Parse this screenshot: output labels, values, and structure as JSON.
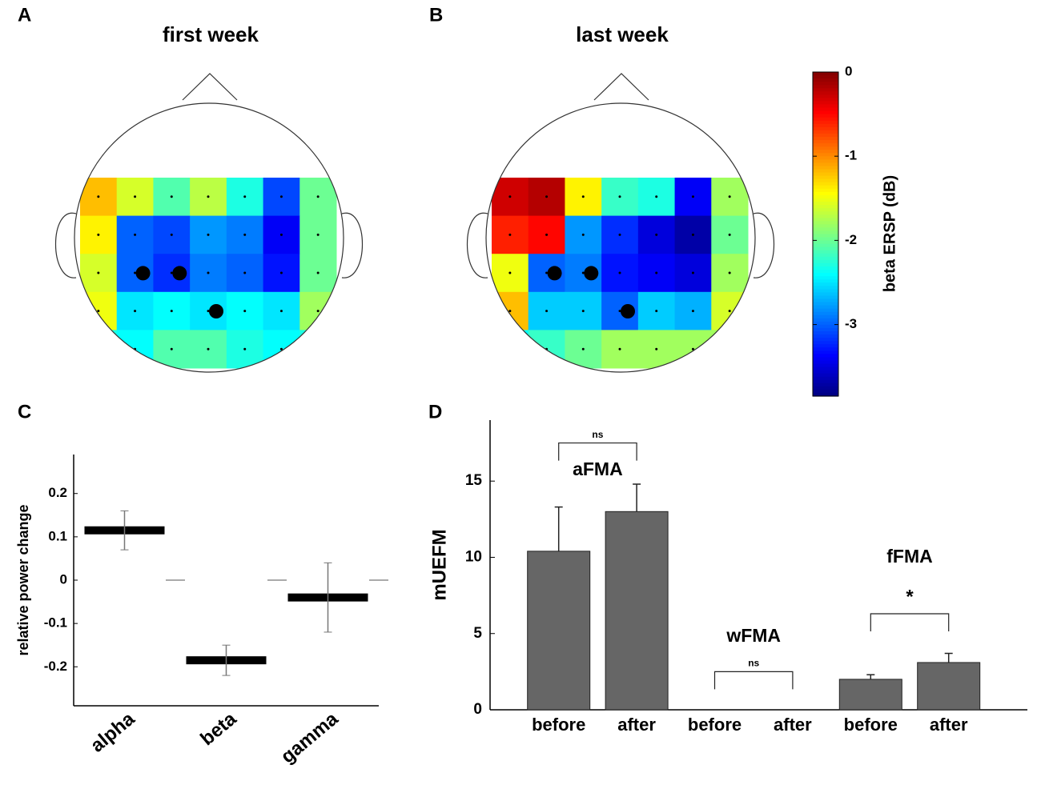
{
  "chart_data": [
    {
      "type": "topomap",
      "panel": "A",
      "title": "first week",
      "values": [
        [
          -1.2,
          -1.6,
          -2.1,
          -1.7,
          -2.3,
          -3.1,
          -2.0
        ],
        [
          -1.4,
          -3.0,
          -3.1,
          -2.8,
          -2.9,
          -3.4,
          -2.0
        ],
        [
          -1.6,
          -3.0,
          -3.2,
          -2.9,
          -3.0,
          -3.3,
          -2.0
        ],
        [
          -1.5,
          -2.5,
          -2.4,
          -2.5,
          -2.4,
          -2.5,
          -1.8
        ],
        [
          -2.3,
          -2.4,
          -2.1,
          -2.1,
          -2.3,
          -2.4,
          -2.3
        ]
      ],
      "clim": [
        -3.85,
        0
      ]
    },
    {
      "type": "topomap",
      "panel": "B",
      "title": "last week",
      "values": [
        [
          -0.3,
          -0.2,
          -1.4,
          -2.2,
          -2.3,
          -3.4,
          -1.8
        ],
        [
          -0.6,
          -0.5,
          -2.8,
          -3.2,
          -3.5,
          -3.7,
          -2.0
        ],
        [
          -1.5,
          -3.0,
          -2.9,
          -3.3,
          -3.4,
          -3.5,
          -1.8
        ],
        [
          -1.2,
          -2.6,
          -2.6,
          -3.0,
          -2.6,
          -2.7,
          -1.6
        ],
        [
          -2.4,
          -2.2,
          -2.0,
          -1.8,
          -1.8,
          -1.8,
          -1.8
        ]
      ],
      "clim": [
        -3.85,
        0
      ],
      "colorbar_label": "beta ERSP (dB)",
      "cticks": [
        0,
        -1,
        -2,
        -3
      ]
    },
    {
      "type": "errorbar",
      "panel": "C",
      "ylabel": "relative power change",
      "categories": [
        "alpha",
        "beta",
        "gamma"
      ],
      "values": [
        0.115,
        -0.185,
        -0.04
      ],
      "errors": [
        0.045,
        0.035,
        0.08
      ],
      "ylim": [
        -0.29,
        0.29
      ],
      "yticks": [
        -0.2,
        -0.1,
        0,
        0.1,
        0.2
      ]
    },
    {
      "type": "bar",
      "panel": "D",
      "ylabel": "mUEFM",
      "categories": [
        "before",
        "after",
        "before",
        "after",
        "before",
        "after"
      ],
      "values": [
        10.4,
        13.0,
        0,
        0,
        2.0,
        3.1
      ],
      "errors": [
        2.9,
        1.8,
        0,
        0,
        0.3,
        0.6
      ],
      "color": "#666666",
      "groups": [
        "aFMA",
        "wFMA",
        "fFMA"
      ],
      "ylim": [
        0,
        19
      ],
      "yticks": [
        0,
        5,
        10,
        15
      ],
      "annotations": [
        {
          "text": "ns",
          "from": 0,
          "to": 1,
          "y": 17.5
        },
        {
          "text": "ns",
          "from": 2,
          "to": 3,
          "y": 2.5
        },
        {
          "text": "*",
          "from": 4,
          "to": 5,
          "y": 6.3
        }
      ]
    }
  ]
}
